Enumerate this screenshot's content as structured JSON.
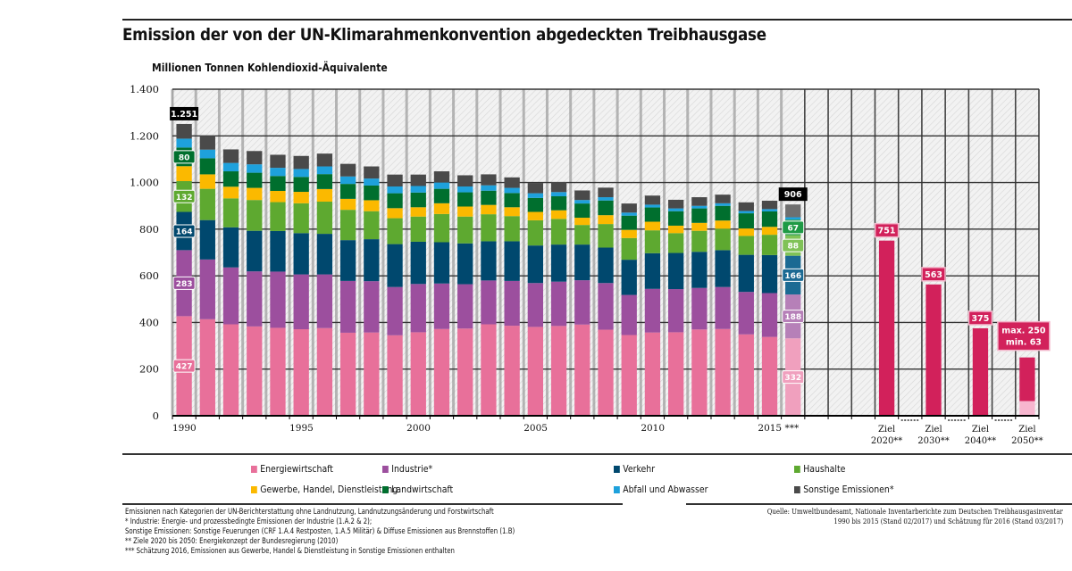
{
  "header": {
    "title": "Emission der von der UN-Klimarahmenkonvention abgedeckten Treibhausgase",
    "unit_label": "Millionen Tonnen Kohlendioxid-Äquivalente"
  },
  "chart_data": {
    "type": "bar",
    "stacked": true,
    "title": "Emission der von der UN-Klimarahmenkonvention abgedeckten Treibhausgase",
    "ylabel": "Millionen Tonnen Kohlendioxid-Äquivalente",
    "ylim": [
      0,
      1400
    ],
    "yticks": [
      0,
      200,
      400,
      600,
      800,
      1000,
      1200,
      1400
    ],
    "ytick_labels": [
      "0",
      "200",
      "400",
      "600",
      "800",
      "1.000",
      "1.200",
      "1.400"
    ],
    "grid": true,
    "categories": [
      "1990",
      "1991",
      "1992",
      "1993",
      "1994",
      "1995",
      "1996",
      "1997",
      "1998",
      "1999",
      "2000",
      "2001",
      "2002",
      "2003",
      "2004",
      "2005",
      "2006",
      "2007",
      "2008",
      "2009",
      "2010",
      "2011",
      "2012",
      "2013",
      "2014",
      "2015",
      "2016"
    ],
    "xtick_labels": [
      {
        "category": "1990",
        "label": "1990"
      },
      {
        "category": "1995",
        "label": "1995"
      },
      {
        "category": "2000",
        "label": "2000"
      },
      {
        "category": "2005",
        "label": "2005"
      },
      {
        "category": "2010",
        "label": "2010"
      },
      {
        "category": "2015",
        "label": "2015 ***"
      }
    ],
    "estimate_category": "2016",
    "series": [
      {
        "name": "Energiewirtschaft",
        "color": "#e8709a",
        "estimate_color": "#f0a0be",
        "values": [
          427,
          414,
          392,
          383,
          377,
          371,
          376,
          356,
          357,
          345,
          358,
          372,
          374,
          392,
          386,
          381,
          385,
          391,
          369,
          346,
          357,
          358,
          370,
          372,
          349,
          338,
          332
        ]
      },
      {
        "name": "Industrie*",
        "color": "#9c4f9e",
        "estimate_color": "#b680b8",
        "values": [
          283,
          256,
          244,
          236,
          241,
          235,
          230,
          222,
          220,
          207,
          207,
          195,
          190,
          188,
          192,
          188,
          190,
          190,
          200,
          172,
          187,
          185,
          178,
          180,
          182,
          188,
          188
        ]
      },
      {
        "name": "Verkehr",
        "color": "#00486e",
        "estimate_color": "#1b6a93",
        "values": [
          164,
          169,
          172,
          174,
          174,
          177,
          174,
          175,
          180,
          184,
          181,
          177,
          175,
          168,
          170,
          161,
          159,
          153,
          152,
          151,
          153,
          155,
          155,
          158,
          159,
          163,
          166
        ]
      },
      {
        "name": "Haushalte",
        "color": "#5ea930",
        "estimate_color": "#80c257",
        "values": [
          132,
          134,
          124,
          132,
          124,
          128,
          138,
          130,
          120,
          111,
          108,
          121,
          115,
          116,
          108,
          108,
          110,
          84,
          101,
          93,
          98,
          85,
          90,
          92,
          81,
          87,
          88
        ]
      },
      {
        "name": "Gewerbe, Handel, Dienstleistung",
        "color": "#fbb900",
        "estimate_color": "#fbb900",
        "values": [
          64,
          62,
          50,
          52,
          48,
          49,
          54,
          47,
          47,
          43,
          40,
          46,
          43,
          40,
          38,
          36,
          37,
          31,
          38,
          35,
          37,
          32,
          34,
          35,
          32,
          34,
          0
        ]
      },
      {
        "name": "Landwirtschaft",
        "color": "#006f2e",
        "estimate_color": "#1e9a45",
        "values": [
          80,
          69,
          66,
          65,
          64,
          64,
          64,
          64,
          63,
          64,
          63,
          62,
          61,
          61,
          61,
          60,
          60,
          61,
          63,
          61,
          61,
          62,
          62,
          63,
          65,
          66,
          67
        ]
      },
      {
        "name": "Abfall und Abwasser",
        "color": "#1ea1dc",
        "estimate_color": "#1ea1dc",
        "values": [
          38,
          37,
          36,
          36,
          35,
          34,
          33,
          32,
          30,
          29,
          28,
          27,
          25,
          23,
          22,
          20,
          18,
          15,
          14,
          13,
          12,
          12,
          11,
          11,
          10,
          10,
          10
        ]
      },
      {
        "name": "Sonstige Emissionen*",
        "color": "#4a4a4a",
        "estimate_color": "#6f6f6f",
        "values": [
          63,
          59,
          58,
          57,
          56,
          56,
          55,
          54,
          52,
          51,
          49,
          48,
          48,
          47,
          45,
          44,
          43,
          41,
          41,
          39,
          39,
          37,
          37,
          37,
          37,
          36,
          55
        ]
      }
    ],
    "totals": {
      "1990": "1.251",
      "2016": "906"
    },
    "segment_labels_1990": {
      "Energiewirtschaft": "427",
      "Industrie*": "283",
      "Verkehr": "164",
      "Haushalte": "132",
      "Landwirtschaft": "80"
    },
    "segment_labels_2016": {
      "Energiewirtschaft": "332",
      "Industrie*": "188",
      "Verkehr": "166",
      "Haushalte": "88",
      "Landwirtschaft": "67"
    },
    "targets": [
      {
        "label_line1": "Ziel",
        "label_line2": "2020**",
        "value": 751,
        "value_label": "751"
      },
      {
        "label_line1": "Ziel",
        "label_line2": "2030**",
        "value": 563,
        "value_label": "563"
      },
      {
        "label_line1": "Ziel",
        "label_line2": "2040**",
        "value": 375,
        "value_label": "375"
      },
      {
        "label_line1": "Ziel",
        "label_line2": "2050**",
        "value": 250,
        "min_value": 63,
        "value_label": "max. 250",
        "min_label": "min. 63"
      }
    ],
    "target_color": "#d2215b",
    "target_min_color": "#f7b6cf",
    "legend": {
      "position": "bottom",
      "items": [
        {
          "name": "Energiewirtschaft",
          "color": "#e8709a"
        },
        {
          "name": "Industrie*",
          "color": "#9c4f9e"
        },
        {
          "name": "Verkehr",
          "color": "#00486e"
        },
        {
          "name": "Haushalte",
          "color": "#5ea930"
        },
        {
          "name": "Gewerbe, Handel, Dienstleistung",
          "color": "#fbb900"
        },
        {
          "name": "Landwirtschaft",
          "color": "#006f2e"
        },
        {
          "name": "Abfall und Abwasser",
          "color": "#1ea1dc"
        },
        {
          "name": "Sonstige Emissionen*",
          "color": "#4a4a4a"
        }
      ]
    }
  },
  "notes": {
    "left": [
      "Emissionen nach Kategorien der UN-Berichterstattung ohne Landnutzung, Landnutzungsänderung und Forstwirtschaft",
      "* Industrie: Energie- und prozessbedingte Emissionen der Industrie (1.A.2 & 2);",
      "Sonstige Emissionen: Sonstige Feuerungen (CRF 1.A.4 Restposten, 1.A.5 Militär) & Diffuse Emissionen aus Brennstoffen (1.B)",
      "** Ziele 2020 bis 2050: Energiekonzept der Bundesregierung (2010)",
      "*** Schätzung 2016, Emissionen aus Gewerbe, Handel & Dienstleistung in Sonstige Emissionen enthalten"
    ],
    "source": [
      "Quelle: Umweltbundesamt, Nationale Inventarberichte zum Deutschen Treibhausgasinventar",
      "1990 bis 2015 (Stand 02/2017) und Schätzung für 2016 (Stand 03/2017)"
    ]
  }
}
